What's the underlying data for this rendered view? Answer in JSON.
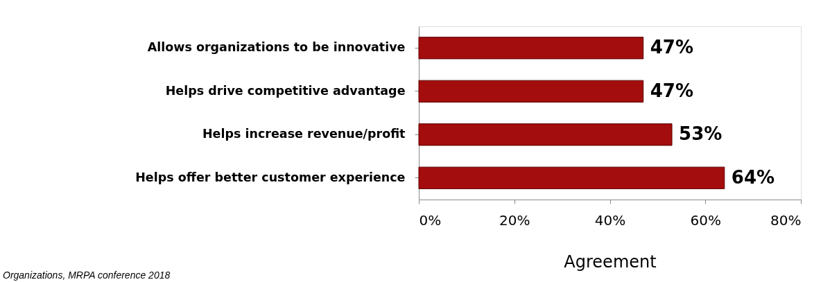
{
  "chart_data": {
    "type": "bar",
    "orientation": "horizontal",
    "xlabel": "Agreement",
    "categories": [
      "Allows organizations to be innovative",
      "Helps drive competitive advantage",
      "Helps increase revenue/profit",
      "Helps offer better customer experience"
    ],
    "values": [
      47,
      47,
      53,
      64
    ],
    "color": "#a40d0d",
    "value_labels": [
      "47%",
      "47%",
      "53%",
      "64%"
    ],
    "xlim": [
      0,
      80
    ],
    "xticks": [
      {
        "value": 0,
        "label": "0%"
      },
      {
        "value": 20,
        "label": "20%"
      },
      {
        "value": 40,
        "label": "40%"
      },
      {
        "value": 60,
        "label": "60%"
      },
      {
        "value": 80,
        "label": "80%"
      }
    ],
    "grid": false,
    "annotations": [
      "Organizations, MRPA conference 2018"
    ]
  }
}
